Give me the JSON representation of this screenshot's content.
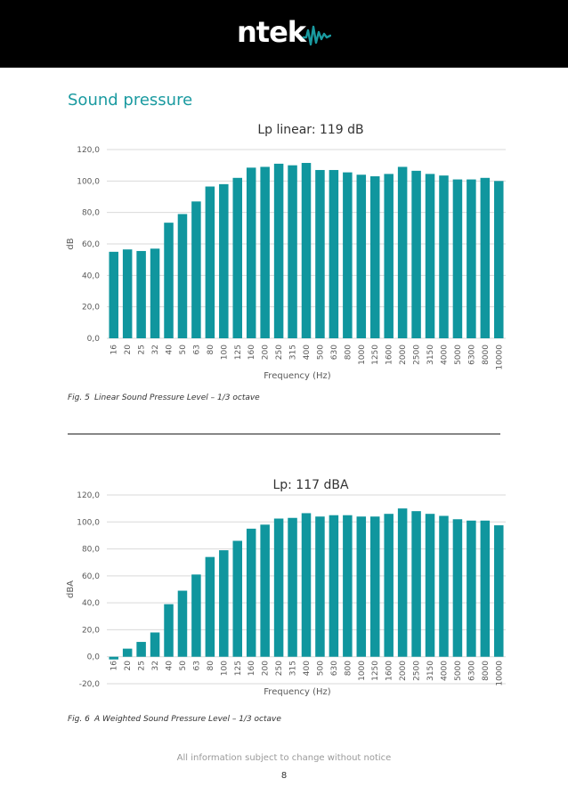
{
  "header": {
    "logo_text": "ntek",
    "logo_wave_icon": "soundwave-icon",
    "background_color": "#000000",
    "logo_accent_color": "#1a9aa0"
  },
  "section": {
    "title": "Sound pressure"
  },
  "chart_data": [
    {
      "type": "bar",
      "title": "Lp linear: 119 dB",
      "xlabel": "Frequency (Hz)",
      "ylabel": "dB",
      "ylim": [
        0,
        120
      ],
      "yticks": [
        0,
        20,
        40,
        60,
        80,
        100,
        120
      ],
      "ytick_labels": [
        "0,0",
        "20,0",
        "40,0",
        "60,0",
        "80,0",
        "100,0",
        "120,0"
      ],
      "bar_color": "#10969e",
      "grid": true,
      "categories": [
        "16",
        "20",
        "25",
        "32",
        "40",
        "50",
        "63",
        "80",
        "100",
        "125",
        "160",
        "200",
        "250",
        "315",
        "400",
        "500",
        "630",
        "800",
        "1000",
        "1250",
        "1600",
        "2000",
        "2500",
        "3150",
        "4000",
        "5000",
        "6300",
        "8000",
        "10000"
      ],
      "values": [
        55,
        56.5,
        55.5,
        57,
        73.5,
        79,
        87,
        96.5,
        98,
        102,
        108.5,
        109,
        111,
        110,
        111.5,
        107,
        107,
        105.5,
        104,
        103,
        104.5,
        109,
        106.5,
        104.5,
        103.5,
        101,
        101,
        102,
        100
      ]
    },
    {
      "type": "bar",
      "title": "Lp: 117 dBA",
      "xlabel": "Frequency (Hz)",
      "ylabel": "dBA",
      "ylim": [
        -20,
        120
      ],
      "yticks": [
        -20,
        0,
        20,
        40,
        60,
        80,
        100,
        120
      ],
      "ytick_labels": [
        "-20,0",
        "0,0",
        "20,0",
        "40,0",
        "60,0",
        "80,0",
        "100,0",
        "120,0"
      ],
      "bar_color": "#10969e",
      "grid": true,
      "categories": [
        "16",
        "20",
        "25",
        "32",
        "40",
        "50",
        "63",
        "80",
        "100",
        "125",
        "160",
        "200",
        "250",
        "315",
        "400",
        "500",
        "630",
        "800",
        "1000",
        "1250",
        "1600",
        "2000",
        "2500",
        "3150",
        "4000",
        "5000",
        "6300",
        "8000",
        "10000"
      ],
      "values": [
        -2,
        6,
        11,
        18,
        39,
        49,
        61,
        74,
        79,
        86,
        95,
        98,
        102.5,
        103,
        106.5,
        104,
        105,
        105,
        104,
        104,
        106,
        110,
        108,
        106,
        104.5,
        102,
        101,
        101,
        97.5
      ]
    }
  ],
  "captions": [
    {
      "fig": "Fig. 5",
      "text": "Linear Sound Pressure Level – 1/3 octave"
    },
    {
      "fig": "Fig. 6",
      "text": "A Weighted Sound Pressure Level – 1/3 octave"
    }
  ],
  "footer": {
    "note": "All information subject to change without notice",
    "page_number": "8"
  }
}
